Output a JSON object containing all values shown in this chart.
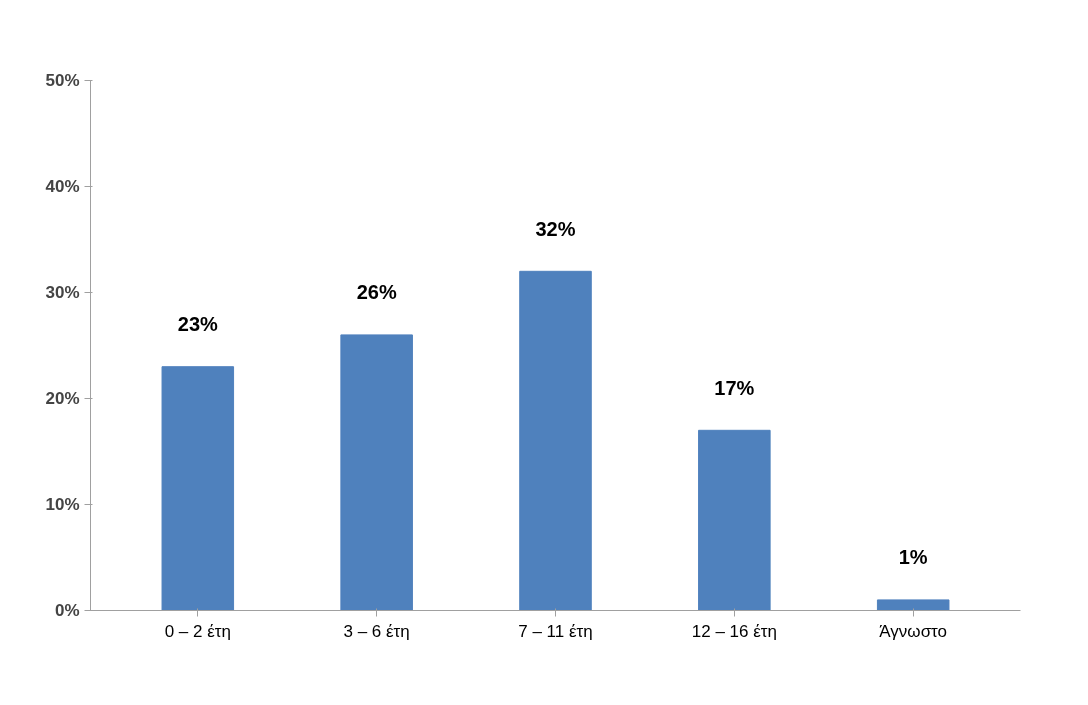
{
  "chart_data": {
    "type": "bar",
    "categories": [
      "0 – 2 έτη",
      "3 – 6 έτη",
      "7 – 11 έτη",
      "12 – 16 έτη",
      "Άγνωστο"
    ],
    "values": [
      23,
      26,
      32,
      17,
      1
    ],
    "value_labels": [
      "23%",
      "26%",
      "32%",
      "17%",
      "1%"
    ],
    "color": "#4f81bd",
    "ylim": [
      0,
      50
    ],
    "yticks": [
      {
        "value": 0,
        "label": "0%"
      },
      {
        "value": 10,
        "label": "10%"
      },
      {
        "value": 20,
        "label": "20%"
      },
      {
        "value": 30,
        "label": "30%"
      },
      {
        "value": 40,
        "label": "40%"
      },
      {
        "value": 50,
        "label": "50%"
      }
    ],
    "grid": false
  }
}
